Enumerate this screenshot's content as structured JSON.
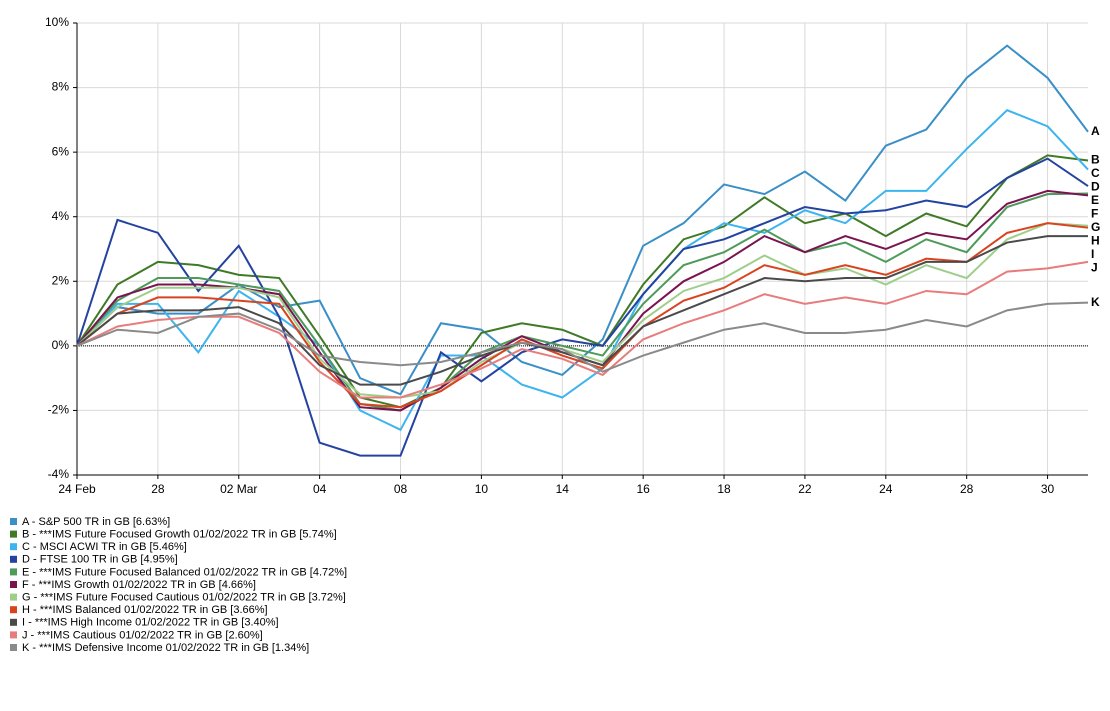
{
  "chart_data": {
    "type": "line",
    "categories": [
      "24 Feb",
      null,
      "28",
      null,
      "02 Mar",
      null,
      "04",
      null,
      "08",
      null,
      "10",
      null,
      "14",
      null,
      "16",
      null,
      "18",
      null,
      "22",
      null,
      "24",
      null,
      "28",
      null,
      "30",
      null
    ],
    "ylim": [
      -4,
      10
    ],
    "yticks": [
      {
        "value": -4,
        "label": "-4%"
      },
      {
        "value": -2,
        "label": "-2%"
      },
      {
        "value": 0,
        "label": "0%"
      },
      {
        "value": 2,
        "label": "2%"
      },
      {
        "value": 4,
        "label": "4%"
      },
      {
        "value": 6,
        "label": "6%"
      },
      {
        "value": 8,
        "label": "8%"
      },
      {
        "value": 10,
        "label": "10%"
      }
    ],
    "grid": true,
    "hline": 0,
    "series": [
      {
        "tag": "A",
        "name": "A - S&P 500 TR in GB [6.63%]",
        "color": "#3a8fc7",
        "values": [
          0,
          1.2,
          1.0,
          1.0,
          1.9,
          1.2,
          1.4,
          -1.0,
          -1.5,
          0.7,
          0.5,
          -0.5,
          -0.9,
          0.2,
          3.1,
          3.8,
          5.0,
          4.7,
          5.4,
          4.5,
          6.2,
          6.7,
          8.3,
          9.3,
          8.3,
          6.63
        ]
      },
      {
        "tag": "B",
        "name": "B - ***IMS Future Focused Growth 01/02/2022 TR in GB [5.74%]",
        "color": "#3f7a26",
        "values": [
          0,
          1.9,
          2.6,
          2.5,
          2.2,
          2.1,
          0.3,
          -1.6,
          -1.9,
          -1.3,
          0.4,
          0.7,
          0.5,
          0.0,
          1.9,
          3.3,
          3.7,
          4.6,
          3.8,
          4.1,
          3.4,
          4.1,
          3.7,
          5.2,
          5.9,
          5.74
        ]
      },
      {
        "tag": "C",
        "name": "C - MSCI ACWI TR in GB [5.46%]",
        "color": "#3cb4ef",
        "values": [
          0,
          1.3,
          1.3,
          -0.2,
          1.7,
          0.9,
          0.0,
          -2.0,
          -2.6,
          -0.3,
          -0.3,
          -1.2,
          -1.6,
          -0.7,
          1.6,
          3.0,
          3.8,
          3.5,
          4.2,
          3.8,
          4.8,
          4.8,
          6.1,
          7.3,
          6.8,
          5.46
        ]
      },
      {
        "tag": "D",
        "name": "D - FTSE 100 TR in GB [4.95%]",
        "color": "#2443a0",
        "values": [
          0,
          3.9,
          3.5,
          1.7,
          3.1,
          0.9,
          -3.0,
          -3.4,
          -3.4,
          -0.2,
          -1.1,
          -0.2,
          0.2,
          0.0,
          1.6,
          3.0,
          3.3,
          3.8,
          4.3,
          4.1,
          4.2,
          4.5,
          4.3,
          5.2,
          5.8,
          4.95
        ]
      },
      {
        "tag": "E",
        "name": "E - ***IMS Future Focused Balanced 01/02/2022 TR in GB [4.72%]",
        "color": "#4e9a5a",
        "values": [
          0,
          1.4,
          2.1,
          2.1,
          1.9,
          1.7,
          0.0,
          -1.8,
          -2.0,
          -1.3,
          -0.2,
          0.3,
          0.0,
          -0.3,
          1.3,
          2.5,
          2.9,
          3.6,
          2.9,
          3.2,
          2.6,
          3.3,
          2.9,
          4.3,
          4.7,
          4.72
        ]
      },
      {
        "tag": "F",
        "name": "F - ***IMS Growth 01/02/2022 TR in GB [4.66%]",
        "color": "#7a1450",
        "values": [
          0,
          1.5,
          1.9,
          1.9,
          1.8,
          1.6,
          -0.2,
          -1.9,
          -2.0,
          -1.3,
          -0.4,
          0.3,
          -0.2,
          -0.6,
          1.0,
          2.0,
          2.6,
          3.4,
          2.9,
          3.4,
          3.0,
          3.5,
          3.3,
          4.4,
          4.8,
          4.66
        ]
      },
      {
        "tag": "G",
        "name": "G - ***IMS Future Focused Cautious 01/02/2022 TR in GB [3.72%]",
        "color": "#9fce8a",
        "values": [
          0,
          1.2,
          1.8,
          1.8,
          1.8,
          1.5,
          -0.4,
          -1.5,
          -1.6,
          -1.4,
          -0.5,
          0.1,
          -0.1,
          -0.5,
          0.8,
          1.7,
          2.1,
          2.8,
          2.2,
          2.4,
          1.9,
          2.5,
          2.1,
          3.3,
          3.8,
          3.72
        ]
      },
      {
        "tag": "H",
        "name": "H - ***IMS Balanced 01/02/2022 TR in GB [3.66%]",
        "color": "#d9431e",
        "values": [
          0,
          1.0,
          1.5,
          1.5,
          1.4,
          1.3,
          -0.5,
          -1.8,
          -1.9,
          -1.4,
          -0.6,
          0.2,
          -0.3,
          -0.7,
          0.6,
          1.4,
          1.8,
          2.5,
          2.2,
          2.5,
          2.2,
          2.7,
          2.6,
          3.5,
          3.8,
          3.66
        ]
      },
      {
        "tag": "I",
        "name": "I - ***IMS High Income 01/02/2022 TR in GB [3.40%]",
        "color": "#4a4a4a",
        "values": [
          0,
          1.0,
          1.1,
          1.1,
          1.2,
          0.7,
          -0.6,
          -1.2,
          -1.2,
          -0.8,
          -0.3,
          0.1,
          -0.2,
          -0.6,
          0.6,
          1.1,
          1.6,
          2.1,
          2.0,
          2.1,
          2.1,
          2.6,
          2.6,
          3.2,
          3.4,
          3.4
        ]
      },
      {
        "tag": "J",
        "name": "J - ***IMS Cautious 01/02/2022 TR in GB [2.60%]",
        "color": "#e87c7c",
        "values": [
          0,
          0.6,
          0.8,
          0.9,
          0.9,
          0.4,
          -0.8,
          -1.6,
          -1.6,
          -1.2,
          -0.7,
          -0.1,
          -0.4,
          -0.9,
          0.2,
          0.7,
          1.1,
          1.6,
          1.3,
          1.5,
          1.3,
          1.7,
          1.6,
          2.3,
          2.4,
          2.6
        ]
      },
      {
        "tag": "K",
        "name": "K - ***IMS Defensive Income 01/02/2022 TR in GB [1.34%]",
        "color": "#8a8a8a",
        "values": [
          0,
          0.5,
          0.4,
          0.9,
          1.0,
          0.5,
          -0.3,
          -0.5,
          -0.6,
          -0.5,
          -0.2,
          0.1,
          -0.1,
          -0.8,
          -0.3,
          0.1,
          0.5,
          0.7,
          0.4,
          0.4,
          0.5,
          0.8,
          0.6,
          1.1,
          1.3,
          1.34
        ]
      }
    ]
  }
}
